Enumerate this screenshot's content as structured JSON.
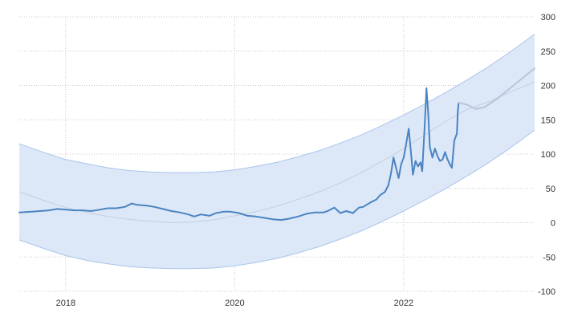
{
  "chart_data": {
    "type": "line",
    "title": "",
    "xlabel": "",
    "ylabel": "",
    "xlim": [
      2017.45,
      2023.55
    ],
    "ylim": [
      -100,
      300
    ],
    "grid": true,
    "x_tick_labels": [
      {
        "x": 2018,
        "label": "2018"
      },
      {
        "x": 2020,
        "label": "2020"
      },
      {
        "x": 2022,
        "label": "2022"
      }
    ],
    "y_tick_labels": [
      {
        "y": 300,
        "label": "300"
      },
      {
        "y": 250,
        "label": "250"
      },
      {
        "y": 200,
        "label": "200"
      },
      {
        "y": 150,
        "label": "150"
      },
      {
        "y": 100,
        "label": "100"
      },
      {
        "y": 50,
        "label": "50"
      },
      {
        "y": 0,
        "label": "0"
      },
      {
        "y": -50,
        "label": "-50"
      },
      {
        "y": -100,
        "label": "-100"
      }
    ],
    "y_axis_side": "right",
    "colors": {
      "series": "#4a84c0",
      "forecast": "#b4c6dc",
      "band_fill": "#dce8f8",
      "band_stroke": "#a9c4ea",
      "trend": "#c3cfdf",
      "grid": "#c8c8c8"
    },
    "series": [
      {
        "values": [
          [
            2017.45,
            15
          ],
          [
            2017.6,
            16
          ],
          [
            2017.8,
            18
          ],
          [
            2017.9,
            20
          ],
          [
            2018.0,
            19
          ],
          [
            2018.1,
            18
          ],
          [
            2018.2,
            18
          ],
          [
            2018.3,
            17
          ],
          [
            2018.4,
            19
          ],
          [
            2018.5,
            21
          ],
          [
            2018.6,
            21
          ],
          [
            2018.7,
            23
          ],
          [
            2018.78,
            28
          ],
          [
            2018.85,
            26
          ],
          [
            2018.95,
            25
          ],
          [
            2019.05,
            23
          ],
          [
            2019.15,
            20
          ],
          [
            2019.25,
            17
          ],
          [
            2019.35,
            15
          ],
          [
            2019.45,
            12
          ],
          [
            2019.52,
            9
          ],
          [
            2019.6,
            12
          ],
          [
            2019.7,
            10
          ],
          [
            2019.78,
            14
          ],
          [
            2019.87,
            16
          ],
          [
            2019.95,
            16
          ],
          [
            2020.05,
            14
          ],
          [
            2020.15,
            10
          ],
          [
            2020.25,
            9
          ],
          [
            2020.35,
            7
          ],
          [
            2020.45,
            5
          ],
          [
            2020.55,
            4
          ],
          [
            2020.65,
            6
          ],
          [
            2020.75,
            9
          ],
          [
            2020.85,
            13
          ],
          [
            2020.95,
            15
          ],
          [
            2021.05,
            15
          ],
          [
            2021.1,
            17
          ],
          [
            2021.18,
            22
          ],
          [
            2021.25,
            14
          ],
          [
            2021.32,
            17
          ],
          [
            2021.4,
            14
          ],
          [
            2021.47,
            22
          ],
          [
            2021.52,
            23
          ],
          [
            2021.6,
            29
          ],
          [
            2021.68,
            34
          ],
          [
            2021.72,
            40
          ],
          [
            2021.78,
            45
          ],
          [
            2021.82,
            55
          ],
          [
            2021.85,
            72
          ],
          [
            2021.88,
            95
          ],
          [
            2021.91,
            80
          ],
          [
            2021.94,
            65
          ],
          [
            2021.97,
            85
          ],
          [
            2022.0,
            95
          ],
          [
            2022.03,
            115
          ],
          [
            2022.06,
            137
          ],
          [
            2022.09,
            98
          ],
          [
            2022.11,
            70
          ],
          [
            2022.14,
            90
          ],
          [
            2022.17,
            82
          ],
          [
            2022.2,
            88
          ],
          [
            2022.22,
            75
          ],
          [
            2022.25,
            145
          ],
          [
            2022.27,
            196
          ],
          [
            2022.29,
            160
          ],
          [
            2022.31,
            110
          ],
          [
            2022.34,
            95
          ],
          [
            2022.37,
            108
          ],
          [
            2022.4,
            97
          ],
          [
            2022.43,
            90
          ],
          [
            2022.46,
            92
          ],
          [
            2022.49,
            103
          ],
          [
            2022.52,
            92
          ],
          [
            2022.55,
            84
          ],
          [
            2022.57,
            80
          ],
          [
            2022.6,
            120
          ],
          [
            2022.63,
            130
          ],
          [
            2022.64,
            160
          ],
          [
            2022.65,
            175
          ]
        ]
      },
      {
        "values": [
          [
            2022.65,
            175
          ],
          [
            2022.75,
            172
          ],
          [
            2022.85,
            166
          ],
          [
            2022.95,
            168
          ],
          [
            2023.1,
            180
          ],
          [
            2023.3,
            200
          ],
          [
            2023.55,
            225
          ]
        ]
      }
    ],
    "trend_values": [
      [
        2017.45,
        45
      ],
      [
        2017.75,
        32
      ],
      [
        2018.0,
        22
      ],
      [
        2018.25,
        15
      ],
      [
        2018.5,
        9
      ],
      [
        2018.75,
        5
      ],
      [
        2019.0,
        2
      ],
      [
        2019.25,
        0
      ],
      [
        2019.5,
        1
      ],
      [
        2019.75,
        4
      ],
      [
        2020.0,
        10
      ],
      [
        2020.25,
        16
      ],
      [
        2020.5,
        24
      ],
      [
        2020.75,
        34
      ],
      [
        2021.0,
        45
      ],
      [
        2021.25,
        58
      ],
      [
        2021.5,
        73
      ],
      [
        2021.75,
        90
      ],
      [
        2022.0,
        108
      ],
      [
        2022.25,
        128
      ],
      [
        2022.5,
        148
      ],
      [
        2022.75,
        165
      ],
      [
        2023.0,
        176
      ],
      [
        2023.25,
        190
      ],
      [
        2023.55,
        205
      ]
    ],
    "band_upper": [
      [
        2017.45,
        115
      ],
      [
        2017.75,
        102
      ],
      [
        2018.0,
        92
      ],
      [
        2018.25,
        86
      ],
      [
        2018.5,
        80
      ],
      [
        2018.75,
        76
      ],
      [
        2019.0,
        74
      ],
      [
        2019.25,
        73
      ],
      [
        2019.5,
        73
      ],
      [
        2019.75,
        74
      ],
      [
        2020.0,
        77
      ],
      [
        2020.25,
        82
      ],
      [
        2020.5,
        88
      ],
      [
        2020.75,
        96
      ],
      [
        2021.0,
        105
      ],
      [
        2021.25,
        116
      ],
      [
        2021.5,
        128
      ],
      [
        2021.75,
        142
      ],
      [
        2022.0,
        157
      ],
      [
        2022.25,
        173
      ],
      [
        2022.5,
        190
      ],
      [
        2022.75,
        208
      ],
      [
        2023.0,
        227
      ],
      [
        2023.25,
        248
      ],
      [
        2023.55,
        275
      ]
    ],
    "band_lower": [
      [
        2017.45,
        -25
      ],
      [
        2017.75,
        -38
      ],
      [
        2018.0,
        -48
      ],
      [
        2018.25,
        -55
      ],
      [
        2018.5,
        -60
      ],
      [
        2018.75,
        -64
      ],
      [
        2019.0,
        -66
      ],
      [
        2019.25,
        -67
      ],
      [
        2019.5,
        -67
      ],
      [
        2019.75,
        -66
      ],
      [
        2020.0,
        -63
      ],
      [
        2020.25,
        -58
      ],
      [
        2020.5,
        -52
      ],
      [
        2020.75,
        -44
      ],
      [
        2021.0,
        -35
      ],
      [
        2021.25,
        -24
      ],
      [
        2021.5,
        -12
      ],
      [
        2021.75,
        2
      ],
      [
        2022.0,
        17
      ],
      [
        2022.25,
        33
      ],
      [
        2022.5,
        50
      ],
      [
        2022.75,
        68
      ],
      [
        2023.0,
        87
      ],
      [
        2023.25,
        108
      ],
      [
        2023.55,
        135
      ]
    ]
  }
}
